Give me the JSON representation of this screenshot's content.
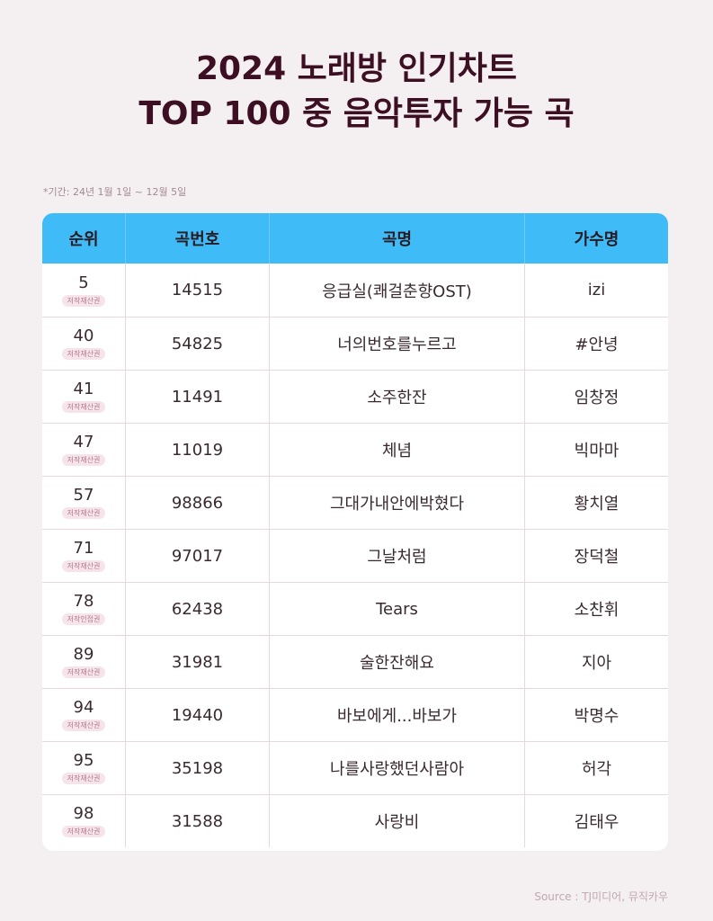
{
  "title": {
    "line1": "2024 노래방 인기차트",
    "line2": "TOP 100 중 음악투자 가능 곡"
  },
  "period": "*기간: 24년 1월 1일 ~ 12월 5일",
  "table": {
    "headers": [
      "순위",
      "곡번호",
      "곡명",
      "가수명"
    ],
    "rows": [
      {
        "rank": "5",
        "badge": "저작재산권",
        "number": "14515",
        "song": "응급실(쾌걸춘향OST)",
        "artist": "izi"
      },
      {
        "rank": "40",
        "badge": "저작재산권",
        "number": "54825",
        "song": "너의번호를누르고",
        "artist": "#안녕"
      },
      {
        "rank": "41",
        "badge": "저작재산권",
        "number": "11491",
        "song": "소주한잔",
        "artist": "임창정"
      },
      {
        "rank": "47",
        "badge": "저작재산권",
        "number": "11019",
        "song": "체념",
        "artist": "빅마마"
      },
      {
        "rank": "57",
        "badge": "저작재산권",
        "number": "98866",
        "song": "그대가내안에박혔다",
        "artist": "황치열"
      },
      {
        "rank": "71",
        "badge": "저작재산권",
        "number": "97017",
        "song": "그날처럼",
        "artist": "장덕철"
      },
      {
        "rank": "78",
        "badge": "저작인접권",
        "number": "62438",
        "song": "Tears",
        "artist": "소찬휘"
      },
      {
        "rank": "89",
        "badge": "저작재산권",
        "number": "31981",
        "song": "술한잔해요",
        "artist": "지아"
      },
      {
        "rank": "94",
        "badge": "저작재산권",
        "number": "19440",
        "song": "바보에게...바보가",
        "artist": "박명수"
      },
      {
        "rank": "95",
        "badge": "저작재산권",
        "number": "35198",
        "song": "나를사랑했던사람아",
        "artist": "허각"
      },
      {
        "rank": "98",
        "badge": "저작재산권",
        "number": "31588",
        "song": "사랑비",
        "artist": "김태우"
      }
    ]
  },
  "source": "Source : TJ미디어, 뮤직카우",
  "colors": {
    "background": "#f4eff1",
    "title": "#3d0f22",
    "header": "#3fbcf7",
    "badge_bg": "#f6e4ea"
  }
}
